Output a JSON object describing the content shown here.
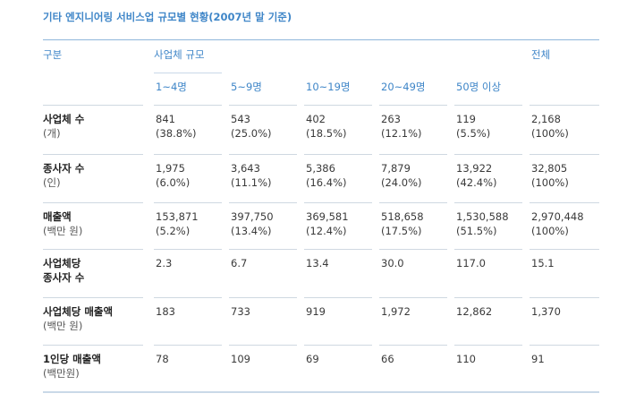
{
  "title": "기타 엔지니어링 서비스업 규모별 현황(2007년 말 기준)",
  "header": {
    "category": "구분",
    "size_group": "사업체 규모",
    "total": "전체",
    "sizes": [
      "1~4명",
      "5~9명",
      "10~19명",
      "20~49명",
      "50명 이상"
    ]
  },
  "rows": [
    {
      "label": "사업체 수",
      "unit": "(개)",
      "cells": [
        [
          "841",
          "(38.8%)"
        ],
        [
          "543",
          "(25.0%)"
        ],
        [
          "402",
          "(18.5%)"
        ],
        [
          "263",
          "(12.1%)"
        ],
        [
          "119",
          "(5.5%)"
        ],
        [
          "2,168",
          "(100%)"
        ]
      ]
    },
    {
      "label": "종사자 수",
      "unit": "(인)",
      "cells": [
        [
          "1,975",
          "(6.0%)"
        ],
        [
          "3,643",
          "(11.1%)"
        ],
        [
          "5,386",
          "(16.4%)"
        ],
        [
          "7,879",
          "(24.0%)"
        ],
        [
          "13,922",
          "(42.4%)"
        ],
        [
          "32,805",
          "(100%)"
        ]
      ]
    },
    {
      "label": "매출액",
      "unit": "(백만 원)",
      "cells": [
        [
          "153,871",
          "(5.2%)"
        ],
        [
          "397,750",
          "(13.4%)"
        ],
        [
          "369,581",
          "(12.4%)"
        ],
        [
          "518,658",
          "(17.5%)"
        ],
        [
          "1,530,588",
          "(51.5%)"
        ],
        [
          "2,970,448",
          "(100%)"
        ]
      ]
    },
    {
      "label": "사업체당",
      "label2": "종사자 수",
      "cells": [
        [
          "2.3"
        ],
        [
          "6.7"
        ],
        [
          "13.4"
        ],
        [
          "30.0"
        ],
        [
          "117.0"
        ],
        [
          "15.1"
        ]
      ]
    },
    {
      "label": "사업체당 매출액",
      "unit": "(백만 원)",
      "cells": [
        [
          "183"
        ],
        [
          "733"
        ],
        [
          "919"
        ],
        [
          "1,972"
        ],
        [
          "12,862"
        ],
        [
          "1,370"
        ]
      ]
    },
    {
      "label": "1인당 매출액",
      "unit": "(백만원)",
      "cells": [
        [
          "78"
        ],
        [
          "109"
        ],
        [
          "69"
        ],
        [
          "66"
        ],
        [
          "110"
        ],
        [
          "91"
        ]
      ]
    }
  ]
}
